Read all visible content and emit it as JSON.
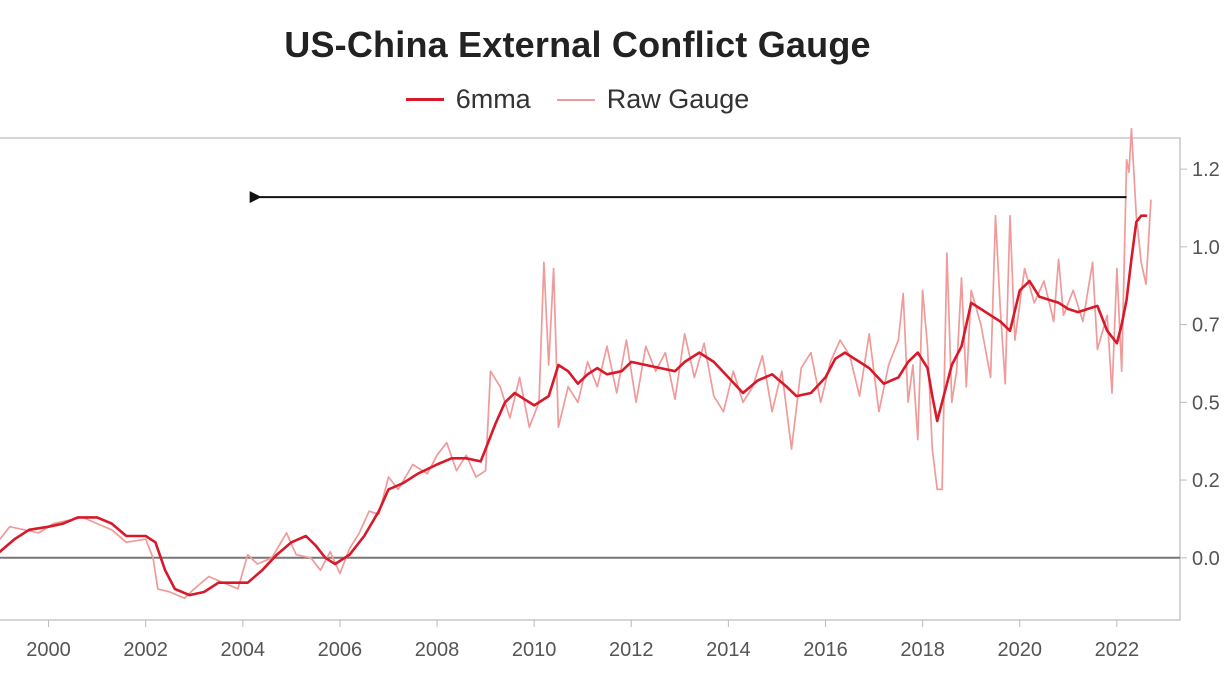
{
  "chart_data": {
    "type": "line",
    "title": "US-China External Conflict Gauge",
    "xlabel": "",
    "ylabel": "",
    "xlim": [
      1999.0,
      2023.3
    ],
    "ylim": [
      -0.2,
      1.35
    ],
    "x_ticks": [
      2000,
      2002,
      2004,
      2006,
      2008,
      2010,
      2012,
      2014,
      2016,
      2018,
      2020,
      2022
    ],
    "x_tick_labels": [
      "2000",
      "2002",
      "2004",
      "2006",
      "2008",
      "2010",
      "2012",
      "2014",
      "2016",
      "2018",
      "2020",
      "2022"
    ],
    "y_ticks": [
      0.0,
      0.25,
      0.5,
      0.75,
      1.0,
      1.25
    ],
    "y_tick_labels": [
      "0.0",
      "0.2",
      "0.5",
      "0.7",
      "1.0",
      "1.2"
    ],
    "grid": false,
    "legend_position": "top-center",
    "reference_line_y": 0.0,
    "annotation": {
      "type": "arrow",
      "y": 1.16,
      "x_from": 2022.2,
      "x_to": 2004.1,
      "direction": "left"
    },
    "series": [
      {
        "name": "6mma",
        "color": "#d7192a",
        "points": [
          [
            1999.0,
            0.02
          ],
          [
            1999.3,
            0.06
          ],
          [
            1999.6,
            0.09
          ],
          [
            2000.0,
            0.1
          ],
          [
            2000.3,
            0.11
          ],
          [
            2000.6,
            0.13
          ],
          [
            2001.0,
            0.13
          ],
          [
            2001.3,
            0.11
          ],
          [
            2001.6,
            0.07
          ],
          [
            2002.0,
            0.07
          ],
          [
            2002.2,
            0.05
          ],
          [
            2002.4,
            -0.04
          ],
          [
            2002.6,
            -0.1
          ],
          [
            2002.9,
            -0.12
          ],
          [
            2003.2,
            -0.11
          ],
          [
            2003.5,
            -0.08
          ],
          [
            2003.8,
            -0.08
          ],
          [
            2004.1,
            -0.08
          ],
          [
            2004.4,
            -0.04
          ],
          [
            2004.7,
            0.01
          ],
          [
            2005.0,
            0.05
          ],
          [
            2005.3,
            0.07
          ],
          [
            2005.5,
            0.04
          ],
          [
            2005.7,
            0.0
          ],
          [
            2005.9,
            -0.02
          ],
          [
            2006.2,
            0.01
          ],
          [
            2006.5,
            0.07
          ],
          [
            2006.8,
            0.15
          ],
          [
            2007.0,
            0.22
          ],
          [
            2007.3,
            0.24
          ],
          [
            2007.6,
            0.27
          ],
          [
            2008.0,
            0.3
          ],
          [
            2008.3,
            0.32
          ],
          [
            2008.6,
            0.32
          ],
          [
            2008.9,
            0.31
          ],
          [
            2009.0,
            0.35
          ],
          [
            2009.2,
            0.43
          ],
          [
            2009.4,
            0.5
          ],
          [
            2009.6,
            0.53
          ],
          [
            2009.8,
            0.51
          ],
          [
            2010.0,
            0.49
          ],
          [
            2010.3,
            0.52
          ],
          [
            2010.5,
            0.62
          ],
          [
            2010.7,
            0.6
          ],
          [
            2010.9,
            0.56
          ],
          [
            2011.1,
            0.59
          ],
          [
            2011.3,
            0.61
          ],
          [
            2011.5,
            0.59
          ],
          [
            2011.8,
            0.6
          ],
          [
            2012.0,
            0.63
          ],
          [
            2012.3,
            0.62
          ],
          [
            2012.6,
            0.61
          ],
          [
            2012.9,
            0.6
          ],
          [
            2013.1,
            0.63
          ],
          [
            2013.4,
            0.66
          ],
          [
            2013.7,
            0.63
          ],
          [
            2014.0,
            0.58
          ],
          [
            2014.3,
            0.53
          ],
          [
            2014.6,
            0.57
          ],
          [
            2014.9,
            0.59
          ],
          [
            2015.2,
            0.55
          ],
          [
            2015.4,
            0.52
          ],
          [
            2015.7,
            0.53
          ],
          [
            2016.0,
            0.58
          ],
          [
            2016.2,
            0.64
          ],
          [
            2016.4,
            0.66
          ],
          [
            2016.7,
            0.63
          ],
          [
            2016.9,
            0.61
          ],
          [
            2017.2,
            0.56
          ],
          [
            2017.5,
            0.58
          ],
          [
            2017.7,
            0.63
          ],
          [
            2017.9,
            0.66
          ],
          [
            2018.1,
            0.61
          ],
          [
            2018.2,
            0.52
          ],
          [
            2018.3,
            0.44
          ],
          [
            2018.4,
            0.5
          ],
          [
            2018.6,
            0.62
          ],
          [
            2018.8,
            0.68
          ],
          [
            2019.0,
            0.82
          ],
          [
            2019.2,
            0.8
          ],
          [
            2019.4,
            0.78
          ],
          [
            2019.6,
            0.76
          ],
          [
            2019.8,
            0.73
          ],
          [
            2020.0,
            0.86
          ],
          [
            2020.2,
            0.89
          ],
          [
            2020.4,
            0.84
          ],
          [
            2020.6,
            0.83
          ],
          [
            2020.8,
            0.82
          ],
          [
            2021.0,
            0.8
          ],
          [
            2021.2,
            0.79
          ],
          [
            2021.4,
            0.8
          ],
          [
            2021.6,
            0.81
          ],
          [
            2021.8,
            0.73
          ],
          [
            2022.0,
            0.69
          ],
          [
            2022.1,
            0.75
          ],
          [
            2022.2,
            0.83
          ],
          [
            2022.3,
            0.96
          ],
          [
            2022.4,
            1.08
          ],
          [
            2022.5,
            1.1
          ],
          [
            2022.6,
            1.1
          ]
        ]
      },
      {
        "name": "Raw Gauge",
        "color": "#f09a9a",
        "points": [
          [
            1999.0,
            0.06
          ],
          [
            1999.2,
            0.1
          ],
          [
            1999.5,
            0.09
          ],
          [
            1999.8,
            0.08
          ],
          [
            2000.1,
            0.11
          ],
          [
            2000.4,
            0.12
          ],
          [
            2000.7,
            0.13
          ],
          [
            2001.0,
            0.11
          ],
          [
            2001.3,
            0.09
          ],
          [
            2001.6,
            0.05
          ],
          [
            2002.0,
            0.06
          ],
          [
            2002.15,
            0.0
          ],
          [
            2002.25,
            -0.1
          ],
          [
            2002.5,
            -0.11
          ],
          [
            2002.8,
            -0.13
          ],
          [
            2003.0,
            -0.1
          ],
          [
            2003.3,
            -0.06
          ],
          [
            2003.6,
            -0.08
          ],
          [
            2003.9,
            -0.1
          ],
          [
            2004.1,
            0.01
          ],
          [
            2004.3,
            -0.02
          ],
          [
            2004.6,
            0.0
          ],
          [
            2004.9,
            0.08
          ],
          [
            2005.1,
            0.01
          ],
          [
            2005.4,
            0.0
          ],
          [
            2005.6,
            -0.04
          ],
          [
            2005.8,
            0.02
          ],
          [
            2006.0,
            -0.05
          ],
          [
            2006.2,
            0.03
          ],
          [
            2006.4,
            0.08
          ],
          [
            2006.6,
            0.15
          ],
          [
            2006.8,
            0.14
          ],
          [
            2007.0,
            0.26
          ],
          [
            2007.2,
            0.22
          ],
          [
            2007.5,
            0.3
          ],
          [
            2007.8,
            0.27
          ],
          [
            2008.0,
            0.33
          ],
          [
            2008.2,
            0.37
          ],
          [
            2008.4,
            0.28
          ],
          [
            2008.6,
            0.33
          ],
          [
            2008.8,
            0.26
          ],
          [
            2009.0,
            0.28
          ],
          [
            2009.1,
            0.6
          ],
          [
            2009.3,
            0.55
          ],
          [
            2009.5,
            0.45
          ],
          [
            2009.7,
            0.58
          ],
          [
            2009.9,
            0.42
          ],
          [
            2010.1,
            0.5
          ],
          [
            2010.2,
            0.95
          ],
          [
            2010.3,
            0.62
          ],
          [
            2010.4,
            0.93
          ],
          [
            2010.5,
            0.42
          ],
          [
            2010.7,
            0.55
          ],
          [
            2010.9,
            0.5
          ],
          [
            2011.1,
            0.63
          ],
          [
            2011.3,
            0.55
          ],
          [
            2011.5,
            0.68
          ],
          [
            2011.7,
            0.53
          ],
          [
            2011.9,
            0.7
          ],
          [
            2012.1,
            0.5
          ],
          [
            2012.3,
            0.68
          ],
          [
            2012.5,
            0.6
          ],
          [
            2012.7,
            0.66
          ],
          [
            2012.9,
            0.51
          ],
          [
            2013.1,
            0.72
          ],
          [
            2013.3,
            0.58
          ],
          [
            2013.5,
            0.69
          ],
          [
            2013.7,
            0.52
          ],
          [
            2013.9,
            0.47
          ],
          [
            2014.1,
            0.6
          ],
          [
            2014.3,
            0.5
          ],
          [
            2014.5,
            0.55
          ],
          [
            2014.7,
            0.65
          ],
          [
            2014.9,
            0.47
          ],
          [
            2015.1,
            0.6
          ],
          [
            2015.3,
            0.35
          ],
          [
            2015.5,
            0.61
          ],
          [
            2015.7,
            0.66
          ],
          [
            2015.9,
            0.5
          ],
          [
            2016.1,
            0.63
          ],
          [
            2016.3,
            0.7
          ],
          [
            2016.5,
            0.65
          ],
          [
            2016.7,
            0.52
          ],
          [
            2016.9,
            0.72
          ],
          [
            2017.1,
            0.47
          ],
          [
            2017.3,
            0.62
          ],
          [
            2017.5,
            0.7
          ],
          [
            2017.6,
            0.85
          ],
          [
            2017.7,
            0.5
          ],
          [
            2017.8,
            0.62
          ],
          [
            2017.9,
            0.38
          ],
          [
            2018.0,
            0.86
          ],
          [
            2018.1,
            0.68
          ],
          [
            2018.2,
            0.35
          ],
          [
            2018.3,
            0.22
          ],
          [
            2018.4,
            0.22
          ],
          [
            2018.5,
            0.98
          ],
          [
            2018.6,
            0.5
          ],
          [
            2018.7,
            0.6
          ],
          [
            2018.8,
            0.9
          ],
          [
            2018.9,
            0.55
          ],
          [
            2019.0,
            0.86
          ],
          [
            2019.2,
            0.75
          ],
          [
            2019.4,
            0.58
          ],
          [
            2019.5,
            1.1
          ],
          [
            2019.6,
            0.8
          ],
          [
            2019.7,
            0.56
          ],
          [
            2019.8,
            1.1
          ],
          [
            2019.9,
            0.7
          ],
          [
            2020.1,
            0.93
          ],
          [
            2020.3,
            0.82
          ],
          [
            2020.5,
            0.89
          ],
          [
            2020.7,
            0.76
          ],
          [
            2020.8,
            0.96
          ],
          [
            2020.9,
            0.78
          ],
          [
            2021.1,
            0.86
          ],
          [
            2021.3,
            0.76
          ],
          [
            2021.5,
            0.95
          ],
          [
            2021.6,
            0.67
          ],
          [
            2021.8,
            0.78
          ],
          [
            2021.9,
            0.53
          ],
          [
            2022.0,
            0.93
          ],
          [
            2022.1,
            0.6
          ],
          [
            2022.2,
            1.28
          ],
          [
            2022.25,
            1.24
          ],
          [
            2022.3,
            1.38
          ],
          [
            2022.4,
            1.1
          ],
          [
            2022.5,
            0.95
          ],
          [
            2022.6,
            0.88
          ],
          [
            2022.7,
            1.15
          ]
        ]
      }
    ]
  }
}
